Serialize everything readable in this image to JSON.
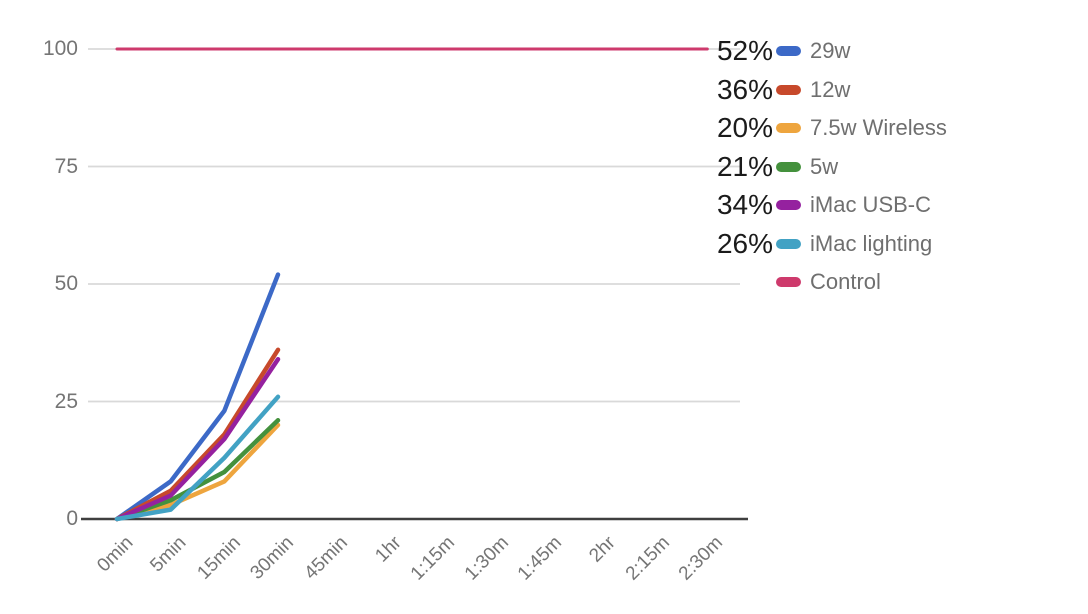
{
  "chart_data": {
    "type": "line",
    "title": "",
    "xlabel": "",
    "ylabel": "",
    "x_labels": [
      "0min",
      "5min",
      "15min",
      "30min",
      "45min",
      "1hr",
      "1:15m",
      "1:30m",
      "1:45m",
      "2hr",
      "2:15m",
      "2:30m"
    ],
    "y_ticks": [
      0,
      25,
      50,
      75,
      100
    ],
    "ylim": [
      0,
      100
    ],
    "grid": true,
    "legend_position": "right",
    "series": [
      {
        "name": "29w",
        "legend_value": "52%",
        "color": "#3c69c7",
        "values": [
          0,
          8,
          23,
          52
        ]
      },
      {
        "name": "12w",
        "legend_value": "36%",
        "color": "#c7492b",
        "values": [
          0,
          6,
          18,
          36
        ]
      },
      {
        "name": "7.5w Wireless",
        "legend_value": "20%",
        "color": "#eea53e",
        "values": [
          0,
          3,
          8,
          20
        ]
      },
      {
        "name": "5w",
        "legend_value": "21%",
        "color": "#44913d",
        "values": [
          0,
          4,
          10,
          21
        ]
      },
      {
        "name": "iMac USB-C",
        "legend_value": "34%",
        "color": "#95219f",
        "values": [
          0,
          5,
          17,
          34
        ]
      },
      {
        "name": "iMac lighting",
        "legend_value": "26%",
        "color": "#42a2c4",
        "values": [
          0,
          2,
          13,
          26
        ]
      },
      {
        "name": "Control",
        "legend_value": "",
        "color": "#ce3a6c",
        "values": [
          100,
          100,
          100,
          100,
          100,
          100,
          100,
          100,
          100,
          100,
          100,
          100
        ]
      }
    ]
  },
  "style_colors": {
    "gridline": "#d9d9d9",
    "axis_line": "#3f3f3f",
    "tick_label": "#757575",
    "legend_label": "#6f6f6f",
    "legend_value": "#1b1b1b"
  }
}
